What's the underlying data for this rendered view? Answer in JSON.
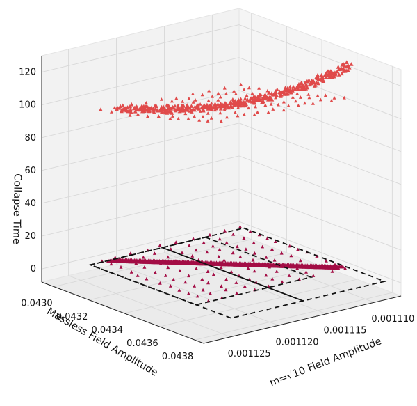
{
  "chart_data": {
    "type": "scatter",
    "projection": "3d",
    "title": "",
    "xlabel": "Massless Field Amplitude",
    "ylabel": "m=√10 Field Amplitude",
    "zlabel": "Collapse Time",
    "xlim": [
      0.04293,
      0.04385
    ],
    "ylim": [
      0.0011072,
      0.0011278
    ],
    "zlim": [
      -8,
      130
    ],
    "x_ticks": [
      "0.0430",
      "0.0432",
      "0.0434",
      "0.0436",
      "0.0438"
    ],
    "y_ticks": [
      "0.001110",
      "0.001115",
      "0.001120",
      "0.001125"
    ],
    "z_ticks": [
      "0",
      "20",
      "40",
      "60",
      "80",
      "100",
      "120"
    ],
    "grid": true,
    "marker": "triangle",
    "colors": {
      "upper_cloud": "#e04a4a",
      "lower_cloud": "#a30d45",
      "pane": "#f2f2f2",
      "grid": "#d8d8d8",
      "dashed_box": "#111111"
    },
    "series": [
      {
        "description_points": "collapse-time cloud",
        "color": "#e04a4a",
        "z_range": [
          75,
          130
        ],
        "x_range": [
          0.043,
          0.0436
        ],
        "y_range": [
          0.001108,
          0.001124
        ]
      },
      {
        "description_points": "projection on base plane",
        "color": "#a30d45",
        "z_range": [
          0,
          2
        ],
        "x_range": [
          0.043,
          0.0436
        ],
        "y_range": [
          0.001108,
          0.001124
        ]
      }
    ],
    "annotations": {
      "outer_dashed_box": {
        "x": [
          0.043,
          0.0438
        ],
        "y": [
          0.001108,
          0.001124
        ],
        "z": 0
      },
      "inner_dashed_box": {
        "x": [
          0.043,
          0.0436
        ],
        "y": [
          0.001112,
          0.001124
        ],
        "z": 0
      },
      "solid_line_y": 0.0011165
    }
  }
}
